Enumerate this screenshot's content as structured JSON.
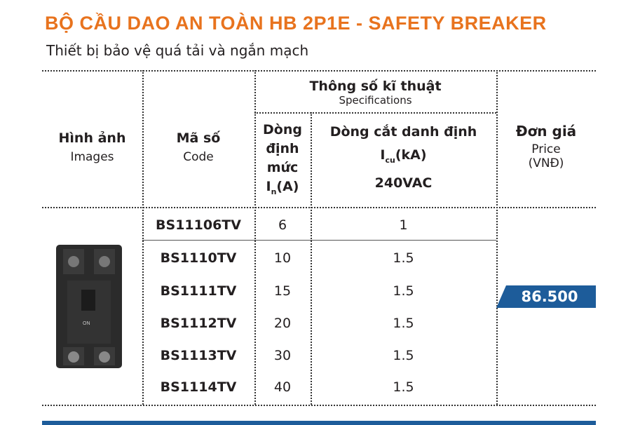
{
  "header": {
    "title": "BỘ CẦU DAO AN TOÀN HB 2P1E - SAFETY BREAKER",
    "subtitle": "Thiết bị bảo vệ quá tải và ngắn mạch"
  },
  "table": {
    "columns": {
      "image": {
        "vi": "Hình ảnh",
        "en": "Images"
      },
      "code": {
        "vi": "Mã số",
        "en": "Code"
      },
      "specs": {
        "vi": "Thông số kĩ thuật",
        "en": "Specifications"
      },
      "rated_current": {
        "lines": [
          "Dòng",
          "định",
          "mức"
        ],
        "symbol": "I",
        "sub": "n",
        "unit": "(A)"
      },
      "breaking_capacity": {
        "title": "Dòng cắt danh định",
        "symbol": "I",
        "sub": "cu",
        "unit": "(kA)",
        "voltage": "240VAC"
      },
      "price": {
        "vi": "Đơn giá",
        "en": "Price",
        "unit": "(VNĐ)"
      }
    },
    "rows": [
      {
        "code": "BS11106TV",
        "rated_current": "6",
        "breaking_capacity": "1"
      },
      {
        "code": "BS1110TV",
        "rated_current": "10",
        "breaking_capacity": "1.5"
      },
      {
        "code": "BS1111TV",
        "rated_current": "15",
        "breaking_capacity": "1.5"
      },
      {
        "code": "BS1112TV",
        "rated_current": "20",
        "breaking_capacity": "1.5"
      },
      {
        "code": "BS1113TV",
        "rated_current": "30",
        "breaking_capacity": "1.5"
      },
      {
        "code": "BS1114TV",
        "rated_current": "40",
        "breaking_capacity": "1.5"
      }
    ],
    "price": "86.500",
    "image_label": "ON"
  }
}
